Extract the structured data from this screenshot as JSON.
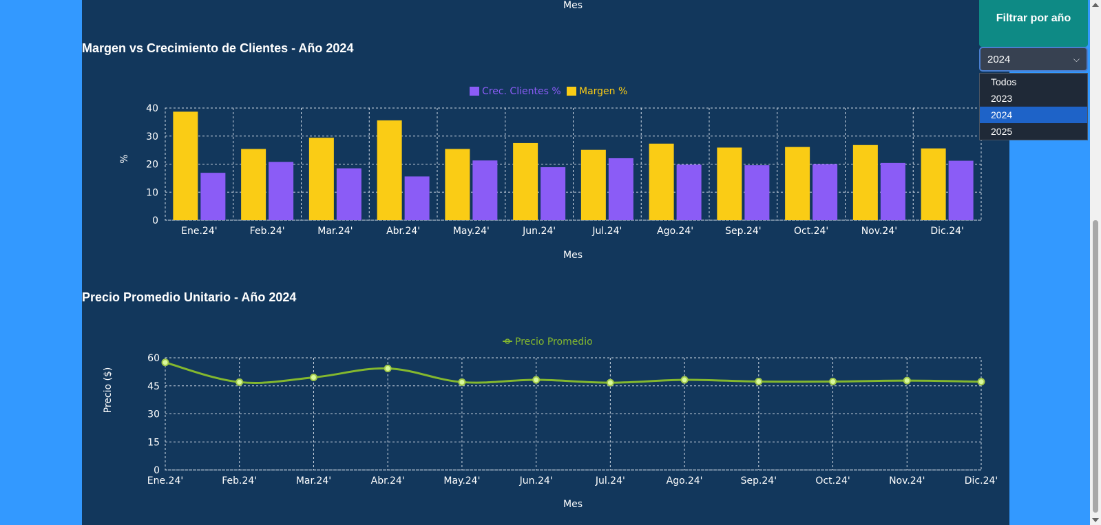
{
  "prev_chart_xlabel": "Mes",
  "filter": {
    "title": "Filtrar por año",
    "selected": "2024",
    "chevron": "chevron-down-icon",
    "options": [
      "Todos",
      "2023",
      "2024",
      "2025"
    ]
  },
  "colors": {
    "panel": "#12375c",
    "page": "#3399ff",
    "margen": "#facc15",
    "clientes": "#8b5cf6",
    "precio": "#84b82e"
  },
  "chart_data": [
    {
      "type": "bar",
      "title": "Margen vs Crecimiento de Clientes - Año 2024",
      "categories": [
        "Ene.24'",
        "Feb.24'",
        "Mar.24'",
        "Abr.24'",
        "May.24'",
        "Jun.24'",
        "Jul.24'",
        "Ago.24'",
        "Sep.24'",
        "Oct.24'",
        "Nov.24'",
        "Dic.24'"
      ],
      "series": [
        {
          "name": "Margen %",
          "values": [
            38.7,
            25.4,
            29.4,
            35.6,
            25.4,
            27.5,
            25.1,
            27.3,
            25.9,
            26.1,
            26.8,
            25.6
          ]
        },
        {
          "name": "Crec. Clientes %",
          "values": [
            16.9,
            20.8,
            18.5,
            15.6,
            21.3,
            18.9,
            22.1,
            19.8,
            19.6,
            20.0,
            20.4,
            21.2
          ]
        }
      ],
      "legend": [
        "Crec. Clientes %",
        "Margen %"
      ],
      "xlabel": "Mes",
      "ylabel": "%",
      "ylim": [
        0,
        40
      ],
      "yticks": [
        0,
        10,
        20,
        30,
        40
      ],
      "grid": true
    },
    {
      "type": "line",
      "title": "Precio Promedio Unitario - Año 2024",
      "categories": [
        "Ene.24'",
        "Feb.24'",
        "Mar.24'",
        "Abr.24'",
        "May.24'",
        "Jun.24'",
        "Jul.24'",
        "Ago.24'",
        "Sep.24'",
        "Oct.24'",
        "Nov.24'",
        "Dic.24'"
      ],
      "series": [
        {
          "name": "Precio Promedio",
          "values": [
            57.5,
            47.0,
            49.5,
            54.3,
            47.0,
            48.2,
            46.7,
            48.2,
            47.3,
            47.3,
            47.8,
            47.2
          ]
        }
      ],
      "legend": [
        "Precio Promedio"
      ],
      "xlabel": "Mes",
      "ylabel": "Precio ($)",
      "ylim": [
        0,
        60
      ],
      "yticks": [
        0,
        15,
        30,
        45,
        60
      ],
      "grid": true
    }
  ]
}
